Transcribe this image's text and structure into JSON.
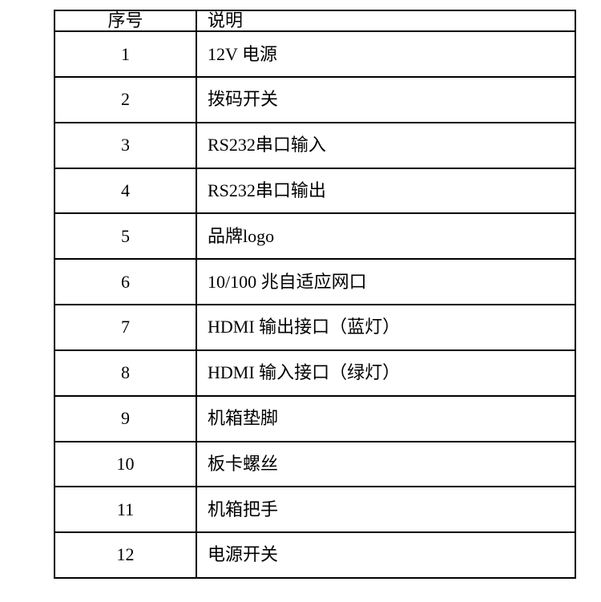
{
  "table": {
    "headers": [
      "序号",
      "说明"
    ],
    "rows": [
      [
        "1",
        "12V 电源"
      ],
      [
        "2",
        "拨码开关"
      ],
      [
        "3",
        "RS232串口输入"
      ],
      [
        "4",
        "RS232串口输出"
      ],
      [
        "5",
        "品牌logo"
      ],
      [
        "6",
        "10/100 兆自适应网口"
      ],
      [
        "7",
        "HDMI 输出接口（蓝灯）"
      ],
      [
        "8",
        "HDMI 输入接口（绿灯）"
      ],
      [
        "9",
        "机箱垫脚"
      ],
      [
        "10",
        "板卡螺丝"
      ],
      [
        "11",
        "机箱把手"
      ],
      [
        "12",
        "电源开关"
      ]
    ]
  }
}
